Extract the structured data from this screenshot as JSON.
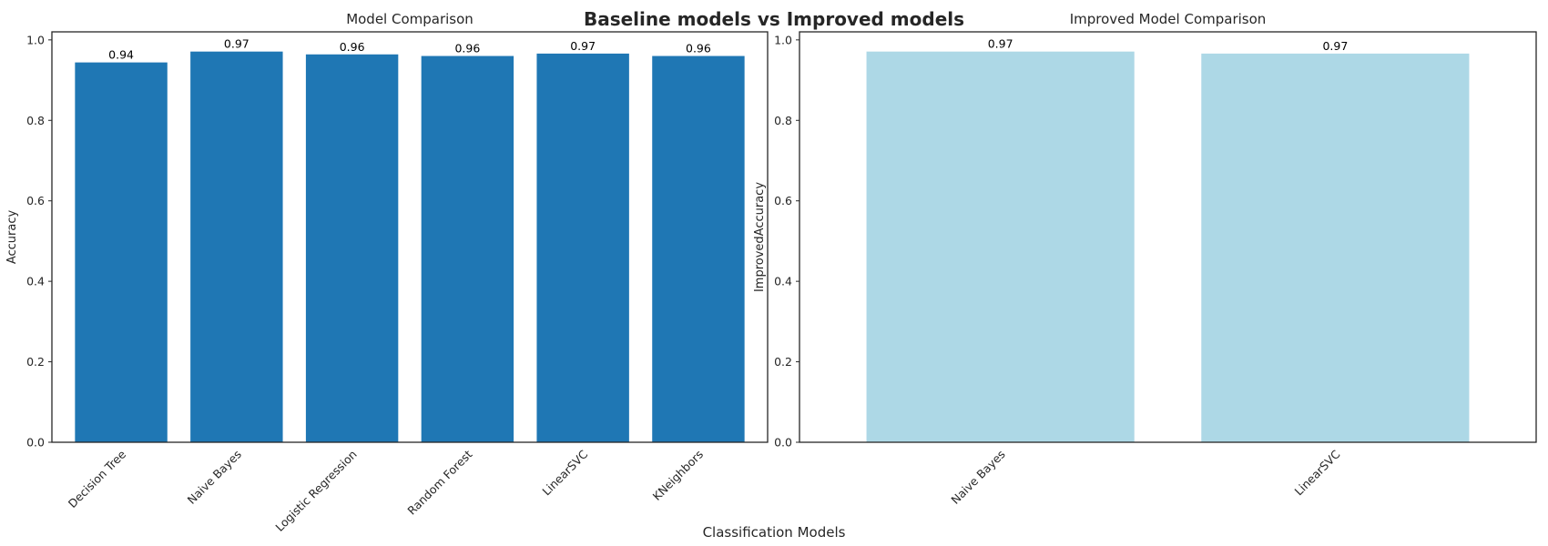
{
  "figure": {
    "suptitle": "Baseline models vs Improved models",
    "xlabel": "Classification Models"
  },
  "chart_data": [
    {
      "type": "bar",
      "title": "Model Comparison",
      "xlabel": "",
      "ylabel": "Accuracy",
      "categories": [
        "Decision Tree",
        "Naive Bayes",
        "Logistic Regression",
        "Random Forest",
        "LinearSVC",
        "KNeighbors"
      ],
      "values": [
        0.944,
        0.971,
        0.964,
        0.96,
        0.966,
        0.96
      ],
      "data_labels": [
        "0.94",
        "0.97",
        "0.96",
        "0.96",
        "0.97",
        "0.96"
      ],
      "ylim": [
        0,
        1.02
      ],
      "yticks": [
        0.0,
        0.2,
        0.4,
        0.6,
        0.8,
        1.0
      ],
      "ytick_labels": [
        "0.0",
        "0.2",
        "0.4",
        "0.6",
        "0.8",
        "1.0"
      ],
      "bar_color": "#1f77b4",
      "grid": false
    },
    {
      "type": "bar",
      "title": "Improved Model Comparison",
      "xlabel": "",
      "ylabel": "ImprovedAccuracy",
      "categories": [
        "Naive Bayes",
        "LinearSVC"
      ],
      "values": [
        0.971,
        0.966
      ],
      "data_labels": [
        "0.97",
        "0.97"
      ],
      "ylim": [
        0,
        1.02
      ],
      "yticks": [
        0.0,
        0.2,
        0.4,
        0.6,
        0.8,
        1.0
      ],
      "ytick_labels": [
        "0.0",
        "0.2",
        "0.4",
        "0.6",
        "0.8",
        "1.0"
      ],
      "bar_color": "#add8e6",
      "grid": false
    }
  ]
}
